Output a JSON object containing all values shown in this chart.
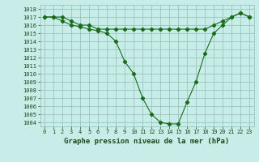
{
  "line1_x": [
    0,
    1,
    2,
    3,
    4,
    5,
    6,
    7,
    8,
    9,
    10,
    11,
    12,
    13,
    14,
    15,
    16,
    17,
    18,
    19,
    20,
    21,
    22,
    23
  ],
  "line1_y": [
    1017,
    1017,
    1017,
    1016.5,
    1016,
    1016,
    1015.5,
    1015.5,
    1015.5,
    1015.5,
    1015.5,
    1015.5,
    1015.5,
    1015.5,
    1015.5,
    1015.5,
    1015.5,
    1015.5,
    1015.5,
    1016,
    1016.5,
    1017,
    1017.5,
    1017
  ],
  "line2_x": [
    0,
    1,
    2,
    3,
    4,
    5,
    6,
    7,
    8,
    9,
    10,
    11,
    12,
    13,
    14,
    15,
    16,
    17,
    18,
    19,
    20,
    21,
    22,
    23
  ],
  "line2_y": [
    1017,
    1017,
    1016.5,
    1016,
    1015.8,
    1015.5,
    1015.3,
    1015,
    1014,
    1011.5,
    1010,
    1007,
    1005,
    1004,
    1003.8,
    1003.8,
    1006.5,
    1009,
    1012.5,
    1015,
    1016,
    1017,
    1017.5,
    1017
  ],
  "line_color": "#1a6b1a",
  "marker": "D",
  "marker_size": 2.2,
  "bg_color": "#c8ede8",
  "grid_color": "#8fbfba",
  "xlabel": "Graphe pression niveau de la mer (hPa)",
  "ylim": [
    1003.5,
    1018.5
  ],
  "xlim": [
    -0.5,
    23.5
  ],
  "yticks": [
    1004,
    1005,
    1006,
    1007,
    1008,
    1009,
    1010,
    1011,
    1012,
    1013,
    1014,
    1015,
    1016,
    1017,
    1018
  ],
  "xticks": [
    0,
    1,
    2,
    3,
    4,
    5,
    6,
    7,
    8,
    9,
    10,
    11,
    12,
    13,
    14,
    15,
    16,
    17,
    18,
    19,
    20,
    21,
    22,
    23
  ],
  "font_color": "#1a4a1a",
  "xlabel_fontsize": 6.5,
  "tick_fontsize": 5.0,
  "linewidth": 0.8
}
